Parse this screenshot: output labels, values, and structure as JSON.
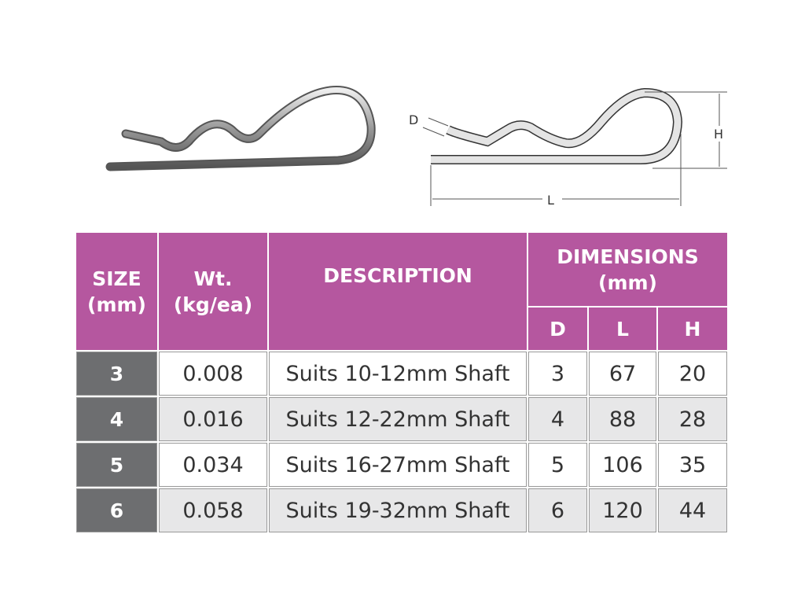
{
  "diagram_labels": {
    "d": "D",
    "h": "H",
    "l": "L"
  },
  "colors": {
    "header": "#b5579f",
    "size_column": "#6d6e70",
    "alt_row": "#e7e7e8"
  },
  "table": {
    "headers": {
      "size": "SIZE (mm)",
      "weight": "Wt. (kg/ea)",
      "description": "DESCRIPTION",
      "dimensions": "DIMENSIONS (mm)",
      "d": "D",
      "l": "L",
      "h": "H"
    },
    "rows": [
      {
        "size": "3",
        "weight": "0.008",
        "description": "Suits 10-12mm Shaft",
        "d": "3",
        "l": "67",
        "h": "20"
      },
      {
        "size": "4",
        "weight": "0.016",
        "description": "Suits 12-22mm Shaft",
        "d": "4",
        "l": "88",
        "h": "28"
      },
      {
        "size": "5",
        "weight": "0.034",
        "description": "Suits 16-27mm Shaft",
        "d": "5",
        "l": "106",
        "h": "35"
      },
      {
        "size": "6",
        "weight": "0.058",
        "description": "Suits 19-32mm Shaft",
        "d": "6",
        "l": "120",
        "h": "44"
      }
    ]
  }
}
